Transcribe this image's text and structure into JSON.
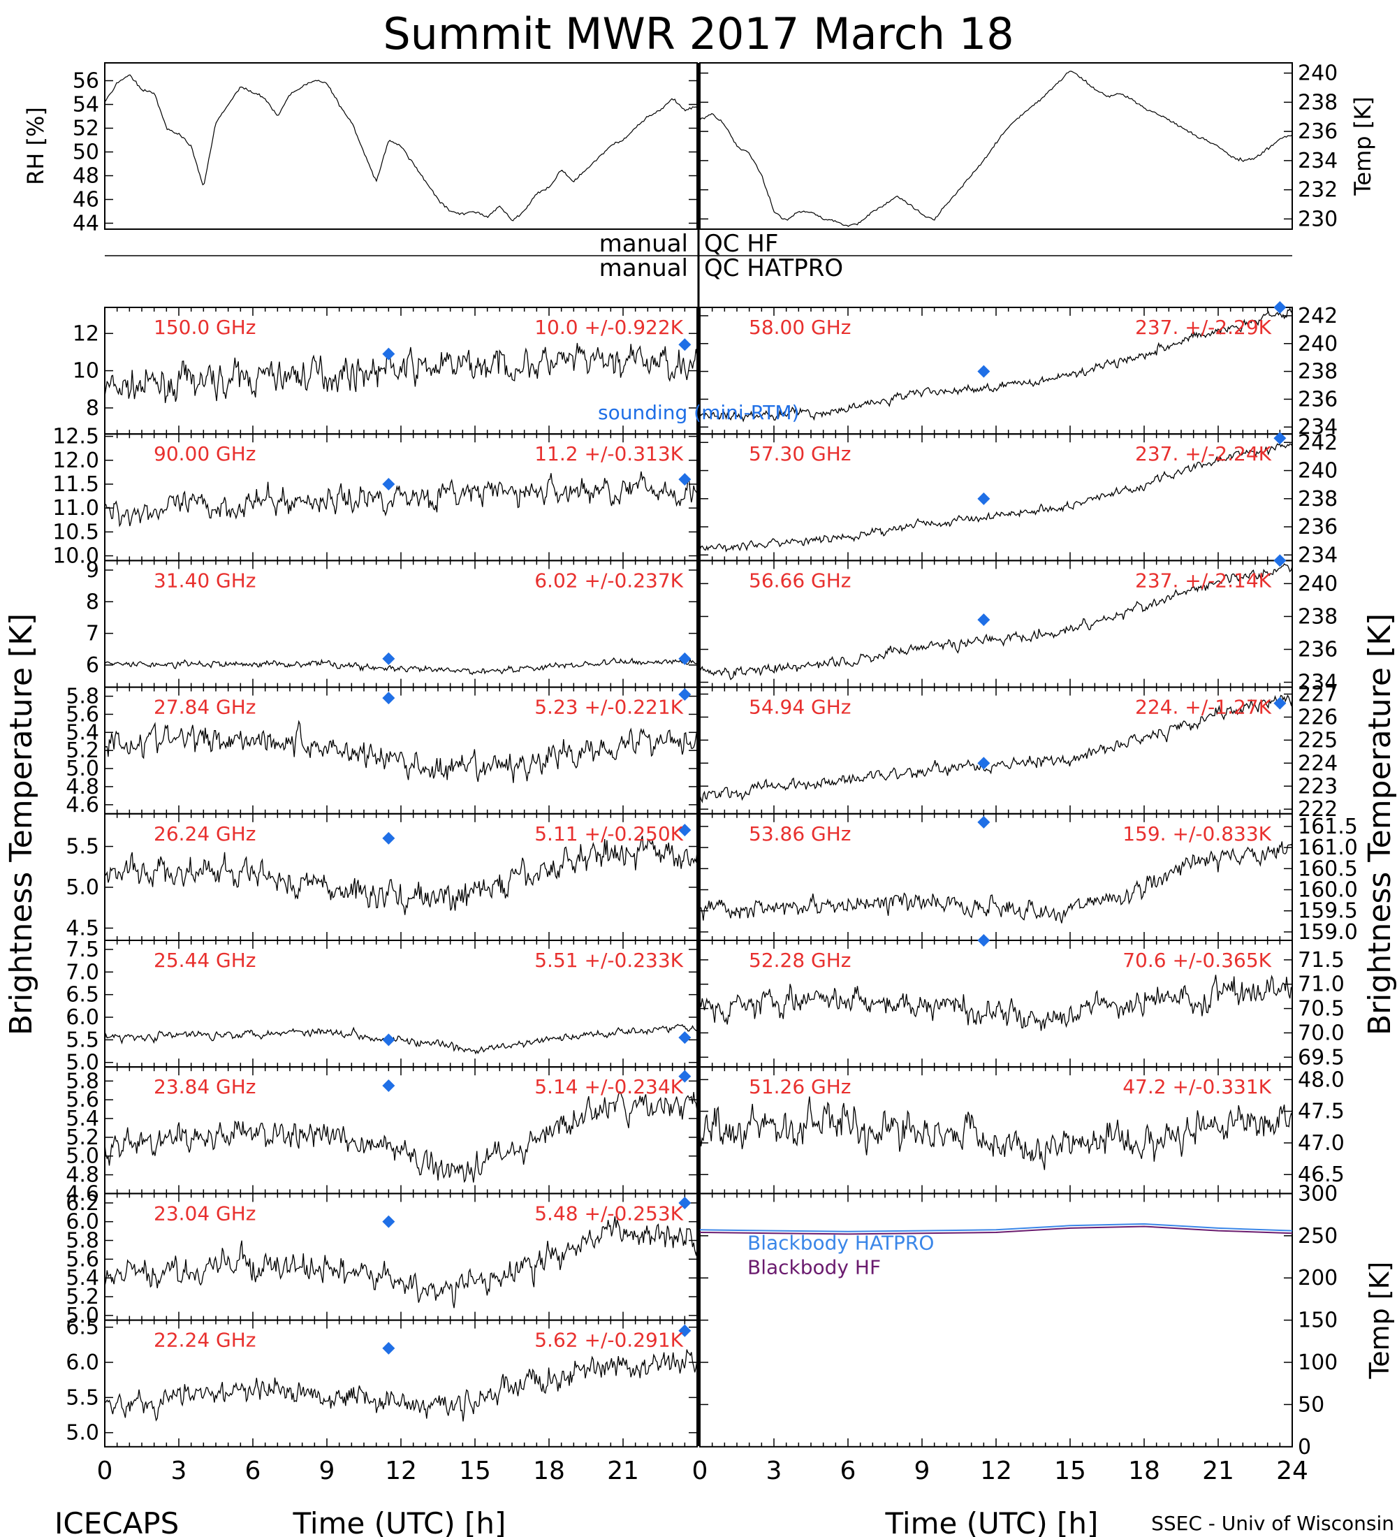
{
  "title": "Summit MWR 2017 March 18",
  "footer": {
    "left": "ICECAPS",
    "right": "SSEC - Univ of Wisconsin"
  },
  "colors": {
    "channel_label": "#e8302e",
    "sounding": "#1f6fe6",
    "hatpro": "#3a86e8",
    "hf": "#6a1b6e",
    "trace": "#000000"
  },
  "y_axis_labels": {
    "left": "Brightness Temperature [K]",
    "right": "Brightness Temperature [K]"
  },
  "x_axis": {
    "label": "Time (UTC) [h]",
    "range": [
      0,
      24
    ],
    "ticks": [
      "0",
      "3",
      "6",
      "9",
      "12",
      "15",
      "18",
      "21",
      "24"
    ]
  },
  "qc_strip": {
    "left_labels": [
      "manual",
      "manual"
    ],
    "right_labels": [
      "QC HF",
      "QC HATPRO"
    ]
  },
  "met": {
    "rh": {
      "ylabel": "RH [%]",
      "ylim": [
        43.5,
        57.5
      ],
      "ticks": [
        "44",
        "46",
        "48",
        "50",
        "52",
        "54",
        "56"
      ],
      "x": [
        0,
        0.5,
        1,
        1.5,
        2,
        2.5,
        3,
        3.5,
        4,
        4.5,
        5,
        5.5,
        6,
        6.5,
        7,
        7.5,
        8,
        8.5,
        9,
        9.5,
        10,
        10.5,
        11,
        11.5,
        12,
        12.5,
        13,
        13.5,
        14,
        14.5,
        15,
        15.5,
        16,
        16.5,
        17,
        17.5,
        18,
        18.5,
        19,
        19.5,
        20,
        20.5,
        21,
        21.5,
        22,
        22.5,
        23,
        23.5,
        24
      ],
      "y": [
        54.2,
        55.8,
        56.5,
        55.2,
        55.0,
        52.0,
        51.5,
        50.5,
        47.0,
        52.5,
        54.0,
        55.5,
        55.0,
        54.5,
        53.0,
        54.8,
        55.5,
        56.0,
        55.8,
        54.0,
        52.5,
        50.0,
        47.5,
        51.0,
        50.5,
        49.0,
        47.5,
        46.0,
        45.0,
        44.8,
        45.0,
        44.5,
        45.5,
        44.2,
        45.0,
        46.5,
        47.0,
        48.5,
        47.5,
        48.5,
        49.5,
        50.5,
        51.0,
        52.0,
        53.0,
        53.5,
        54.5,
        53.5,
        53.8
      ]
    },
    "temp": {
      "ylabel": "Temp [K]",
      "ylim": [
        229.3,
        240.7
      ],
      "ticks": [
        "230",
        "232",
        "234",
        "236",
        "238",
        "240"
      ],
      "x": [
        0,
        0.5,
        1,
        1.5,
        2,
        2.5,
        3,
        3.5,
        4,
        4.5,
        5,
        5.5,
        6,
        6.5,
        7,
        7.5,
        8,
        8.5,
        9,
        9.5,
        10,
        10.5,
        11,
        11.5,
        12,
        12.5,
        13,
        13.5,
        14,
        14.5,
        15,
        15.5,
        16,
        16.5,
        17,
        17.5,
        18,
        18.5,
        19,
        19.5,
        20,
        20.5,
        21,
        21.5,
        22,
        22.5,
        23,
        23.5,
        24
      ],
      "y": [
        236.8,
        237.2,
        236.5,
        235.0,
        234.5,
        233.0,
        230.5,
        229.9,
        230.5,
        230.5,
        230.0,
        229.8,
        229.5,
        229.8,
        230.5,
        231.0,
        231.6,
        231.0,
        230.3,
        230.0,
        231.0,
        232.0,
        233.0,
        234.0,
        235.2,
        236.3,
        237.0,
        237.8,
        238.5,
        239.3,
        240.2,
        239.6,
        238.9,
        238.4,
        238.6,
        238.2,
        237.6,
        237.2,
        236.8,
        236.3,
        235.8,
        235.4,
        235.0,
        234.3,
        234.0,
        234.2,
        234.8,
        235.5,
        235.8
      ]
    }
  },
  "channels": {
    "left": [
      {
        "freq": "150.0 GHz",
        "stat": "10.0 +/-0.922K",
        "ylim": [
          6.6,
          13.4
        ],
        "ticks": [
          "8",
          "10",
          "12"
        ],
        "tickvals": [
          8,
          10,
          12
        ],
        "noise": 0.92,
        "knots": [
          [
            0,
            9.0
          ],
          [
            6,
            9.6
          ],
          [
            12,
            10.1
          ],
          [
            18,
            10.4
          ],
          [
            24,
            10.5
          ]
        ],
        "sonde": [
          [
            11.5,
            10.9
          ],
          [
            23.5,
            11.4
          ]
        ]
      },
      {
        "freq": "90.00 GHz",
        "stat": "11.2 +/-0.313K",
        "ylim": [
          9.9,
          12.55
        ],
        "ticks": [
          "10.0",
          "10.5",
          "11.0",
          "11.5",
          "12.0",
          "12.5"
        ],
        "tickvals": [
          10,
          10.5,
          11,
          11.5,
          12,
          12.5
        ],
        "noise": 0.3,
        "knots": [
          [
            0,
            10.9
          ],
          [
            6,
            11.1
          ],
          [
            12,
            11.25
          ],
          [
            18,
            11.35
          ],
          [
            24,
            11.4
          ]
        ],
        "sonde": [
          [
            11.5,
            11.5
          ],
          [
            23.5,
            11.6
          ]
        ]
      },
      {
        "freq": "31.40 GHz",
        "stat": "6.02 +/-0.237K",
        "ylim": [
          5.3,
          9.3
        ],
        "ticks": [
          "6",
          "7",
          "8",
          "9"
        ],
        "tickvals": [
          6,
          7,
          8,
          9
        ],
        "noise": 0.12,
        "knots": [
          [
            0,
            6.0
          ],
          [
            9,
            6.05
          ],
          [
            12,
            5.85
          ],
          [
            15,
            5.8
          ],
          [
            18,
            5.95
          ],
          [
            21,
            6.1
          ],
          [
            24,
            6.1
          ]
        ],
        "sonde": [
          [
            11.5,
            6.2
          ],
          [
            23.5,
            6.2
          ]
        ]
      },
      {
        "freq": "27.84 GHz",
        "stat": "5.23 +/-0.221K",
        "ylim": [
          4.5,
          5.9
        ],
        "ticks": [
          "4.6",
          "4.8",
          "5.0",
          "5.2",
          "5.4",
          "5.6",
          "5.8"
        ],
        "tickvals": [
          4.6,
          4.8,
          5.0,
          5.2,
          5.4,
          5.6,
          5.8
        ],
        "noise": 0.17,
        "knots": [
          [
            0,
            5.3
          ],
          [
            6,
            5.35
          ],
          [
            10,
            5.2
          ],
          [
            14,
            4.95
          ],
          [
            17,
            5.05
          ],
          [
            21,
            5.3
          ],
          [
            24,
            5.35
          ]
        ],
        "sonde": [
          [
            11.5,
            5.78
          ],
          [
            23.5,
            5.82
          ]
        ]
      },
      {
        "freq": "26.24 GHz",
        "stat": "5.11 +/-0.250K",
        "ylim": [
          4.35,
          5.9
        ],
        "ticks": [
          "4.5",
          "5.0",
          "5.5"
        ],
        "tickvals": [
          4.5,
          5.0,
          5.5
        ],
        "noise": 0.2,
        "knots": [
          [
            0,
            5.2
          ],
          [
            6,
            5.15
          ],
          [
            10,
            4.95
          ],
          [
            14,
            4.85
          ],
          [
            17,
            5.1
          ],
          [
            20,
            5.45
          ],
          [
            24,
            5.4
          ]
        ],
        "sonde": [
          [
            11.5,
            5.6
          ],
          [
            23.5,
            5.7
          ]
        ]
      },
      {
        "freq": "25.44 GHz",
        "stat": "5.51 +/-0.233K",
        "ylim": [
          4.9,
          7.7
        ],
        "ticks": [
          "5.0",
          "5.5",
          "6.0",
          "6.5",
          "7.0",
          "7.5"
        ],
        "tickvals": [
          5,
          5.5,
          6,
          6.5,
          7,
          7.5
        ],
        "noise": 0.1,
        "knots": [
          [
            0,
            5.55
          ],
          [
            9,
            5.7
          ],
          [
            12,
            5.5
          ],
          [
            15,
            5.25
          ],
          [
            18,
            5.5
          ],
          [
            21,
            5.7
          ],
          [
            24,
            5.8
          ]
        ],
        "sonde": [
          [
            11.5,
            5.5
          ],
          [
            23.5,
            5.55
          ]
        ]
      },
      {
        "freq": "23.84 GHz",
        "stat": "5.14 +/-0.234K",
        "ylim": [
          4.6,
          5.95
        ],
        "ticks": [
          "4.6",
          "4.8",
          "5.0",
          "5.2",
          "5.4",
          "5.6",
          "5.8"
        ],
        "tickvals": [
          4.6,
          4.8,
          5.0,
          5.2,
          5.4,
          5.6,
          5.8
        ],
        "noise": 0.16,
        "knots": [
          [
            0,
            5.1
          ],
          [
            6,
            5.25
          ],
          [
            10,
            5.2
          ],
          [
            14,
            4.85
          ],
          [
            17,
            5.1
          ],
          [
            20,
            5.5
          ],
          [
            24,
            5.55
          ]
        ],
        "sonde": [
          [
            11.5,
            5.75
          ],
          [
            23.5,
            5.85
          ]
        ]
      },
      {
        "freq": "23.04 GHz",
        "stat": "5.48 +/-0.253K",
        "ylim": [
          4.95,
          6.3
        ],
        "ticks": [
          "5.0",
          "5.2",
          "5.4",
          "5.6",
          "5.8",
          "6.0",
          "6.2"
        ],
        "tickvals": [
          5.0,
          5.2,
          5.4,
          5.6,
          5.8,
          6.0,
          6.2
        ],
        "noise": 0.16,
        "knots": [
          [
            0,
            5.4
          ],
          [
            6,
            5.55
          ],
          [
            10,
            5.45
          ],
          [
            14,
            5.25
          ],
          [
            17,
            5.5
          ],
          [
            20,
            5.85
          ],
          [
            24,
            5.9
          ]
        ],
        "sonde": [
          [
            11.5,
            6.0
          ],
          [
            23.5,
            6.2
          ]
        ]
      },
      {
        "freq": "22.24 GHz",
        "stat": "5.62 +/-0.291K",
        "ylim": [
          4.8,
          6.6
        ],
        "ticks": [
          "5.0",
          "5.5",
          "6.0",
          "6.5"
        ],
        "tickvals": [
          5.0,
          5.5,
          6.0,
          6.5
        ],
        "noise": 0.2,
        "knots": [
          [
            0,
            5.4
          ],
          [
            6,
            5.6
          ],
          [
            10,
            5.55
          ],
          [
            14,
            5.35
          ],
          [
            17,
            5.7
          ],
          [
            20,
            5.9
          ],
          [
            24,
            6.0
          ]
        ],
        "sonde": [
          [
            11.5,
            6.2
          ],
          [
            23.5,
            6.45
          ]
        ]
      }
    ],
    "right": [
      {
        "freq": "58.00 GHz",
        "stat": "237. +/-2.29K",
        "ylim": [
          233.5,
          242.6
        ],
        "ticks": [
          "234",
          "236",
          "238",
          "240",
          "242"
        ],
        "tickvals": [
          234,
          236,
          238,
          240,
          242
        ],
        "noise": 0.35,
        "knots": [
          [
            0,
            234.8
          ],
          [
            5,
            235.0
          ],
          [
            9,
            236.5
          ],
          [
            12,
            236.8
          ],
          [
            15,
            237.8
          ],
          [
            18,
            239.3
          ],
          [
            21,
            241.0
          ],
          [
            24,
            242.3
          ]
        ],
        "sonde": [
          [
            11.5,
            238.0
          ],
          [
            23.5,
            242.6
          ]
        ]
      },
      {
        "freq": "57.30 GHz",
        "stat": "237. +/-2.24K",
        "ylim": [
          233.6,
          242.6
        ],
        "ticks": [
          "234",
          "236",
          "238",
          "240",
          "242"
        ],
        "tickvals": [
          234,
          236,
          238,
          240,
          242
        ],
        "noise": 0.35,
        "knots": [
          [
            0,
            234.5
          ],
          [
            5,
            235.0
          ],
          [
            9,
            236.2
          ],
          [
            12,
            236.8
          ],
          [
            15,
            237.5
          ],
          [
            18,
            239.0
          ],
          [
            21,
            240.8
          ],
          [
            24,
            241.9
          ]
        ],
        "sonde": [
          [
            11.5,
            238.0
          ],
          [
            23.5,
            242.3
          ]
        ]
      },
      {
        "freq": "56.66 GHz",
        "stat": "237. +/-2.14K",
        "ylim": [
          233.7,
          241.4
        ],
        "ticks": [
          "234",
          "236",
          "238",
          "240"
        ],
        "tickvals": [
          234,
          236,
          238,
          240
        ],
        "noise": 0.35,
        "knots": [
          [
            0,
            234.5
          ],
          [
            5,
            235.0
          ],
          [
            9,
            236.2
          ],
          [
            12,
            236.6
          ],
          [
            15,
            237.2
          ],
          [
            18,
            238.6
          ],
          [
            21,
            240.1
          ],
          [
            24,
            241.0
          ]
        ],
        "sonde": [
          [
            11.5,
            237.8
          ],
          [
            23.5,
            241.5
          ]
        ]
      },
      {
        "freq": "54.94 GHz",
        "stat": "224. +/-1.27K",
        "ylim": [
          221.8,
          227.3
        ],
        "ticks": [
          "222",
          "223",
          "224",
          "225",
          "226",
          "227"
        ],
        "tickvals": [
          222,
          223,
          224,
          225,
          226,
          227
        ],
        "noise": 0.3,
        "knots": [
          [
            0,
            222.6
          ],
          [
            5,
            223.2
          ],
          [
            9,
            223.7
          ],
          [
            12,
            223.9
          ],
          [
            15,
            224.2
          ],
          [
            18,
            225.1
          ],
          [
            21,
            226.2
          ],
          [
            24,
            226.8
          ]
        ],
        "sonde": [
          [
            11.5,
            224.0
          ],
          [
            23.5,
            226.6
          ]
        ]
      },
      {
        "freq": "53.86 GHz",
        "stat": "159. +/-0.833K",
        "ylim": [
          158.8,
          161.8
        ],
        "ticks": [
          "159.0",
          "159.5",
          "160.0",
          "160.5",
          "161.0",
          "161.5"
        ],
        "tickvals": [
          159,
          159.5,
          160,
          160.5,
          161,
          161.5
        ],
        "noise": 0.25,
        "knots": [
          [
            0,
            159.5
          ],
          [
            9,
            159.7
          ],
          [
            14,
            159.5
          ],
          [
            17,
            159.8
          ],
          [
            20,
            160.6
          ],
          [
            24,
            161.0
          ]
        ],
        "sonde": [
          [
            11.5,
            161.6
          ]
        ]
      },
      {
        "freq": "52.28 GHz",
        "stat": "70.6 +/-0.365K",
        "ylim": [
          69.3,
          71.9
        ],
        "ticks": [
          "69.5",
          "70.0",
          "70.5",
          "71.0",
          "71.5"
        ],
        "tickvals": [
          69.5,
          70,
          70.5,
          71,
          71.5
        ],
        "noise": 0.3,
        "knots": [
          [
            0,
            70.6
          ],
          [
            6,
            70.65
          ],
          [
            10,
            70.55
          ],
          [
            14,
            70.2
          ],
          [
            17,
            70.6
          ],
          [
            21,
            70.8
          ],
          [
            24,
            70.9
          ]
        ],
        "sonde": [
          [
            11.5,
            72.0
          ]
        ]
      },
      {
        "freq": "51.26 GHz",
        "stat": "47.2 +/-0.331K",
        "ylim": [
          46.2,
          48.2
        ],
        "ticks": [
          "46.5",
          "47.0",
          "47.5",
          "48.0"
        ],
        "tickvals": [
          46.5,
          47,
          47.5,
          48
        ],
        "noise": 0.3,
        "knots": [
          [
            0,
            47.3
          ],
          [
            6,
            47.3
          ],
          [
            10,
            47.2
          ],
          [
            14,
            46.9
          ],
          [
            17,
            47.0
          ],
          [
            21,
            47.3
          ],
          [
            24,
            47.4
          ]
        ],
        "sonde": []
      }
    ]
  },
  "blackbody": {
    "ylabel": "Temp [K]",
    "ylim": [
      0,
      300
    ],
    "ticks": [
      "0",
      "50",
      "100",
      "150",
      "200",
      "250",
      "300"
    ],
    "tickvals": [
      0,
      50,
      100,
      150,
      200,
      250,
      300
    ],
    "legend": [
      "Blackbody HATPRO",
      "Blackbody HF"
    ],
    "x": [
      0,
      3,
      6,
      9,
      12,
      15,
      18,
      21,
      24
    ],
    "hatpro": [
      257,
      256,
      255,
      256,
      257,
      262,
      264,
      259,
      256
    ],
    "hf": [
      254,
      253,
      252,
      253,
      254,
      259,
      261,
      256,
      253
    ]
  },
  "sounding_label": "sounding (mini-RTM)"
}
